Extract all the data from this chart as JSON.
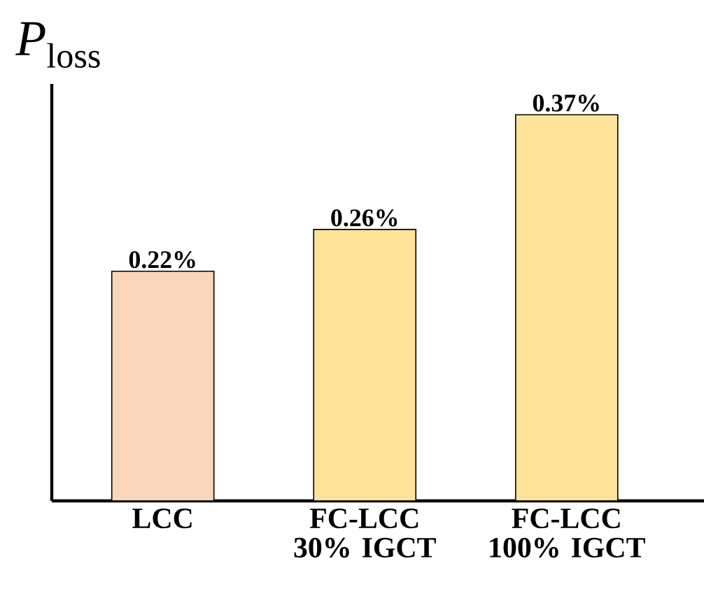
{
  "chart_data": {
    "type": "bar",
    "ylabel": "*P*$_{loss}$",
    "categories": [
      "LCC",
      "FC-LCC 30% IGCT",
      "FC-LCC 100% IGCT"
    ],
    "values": [
      0.22,
      0.26,
      0.37
    ],
    "colors": [
      "#f9d5b9",
      "#fee498",
      "#fee498"
    ],
    "value_labels": [
      "0.22%",
      "0.26%",
      "0.37%"
    ],
    "tick_labels": "x",
    "grid": false
  }
}
